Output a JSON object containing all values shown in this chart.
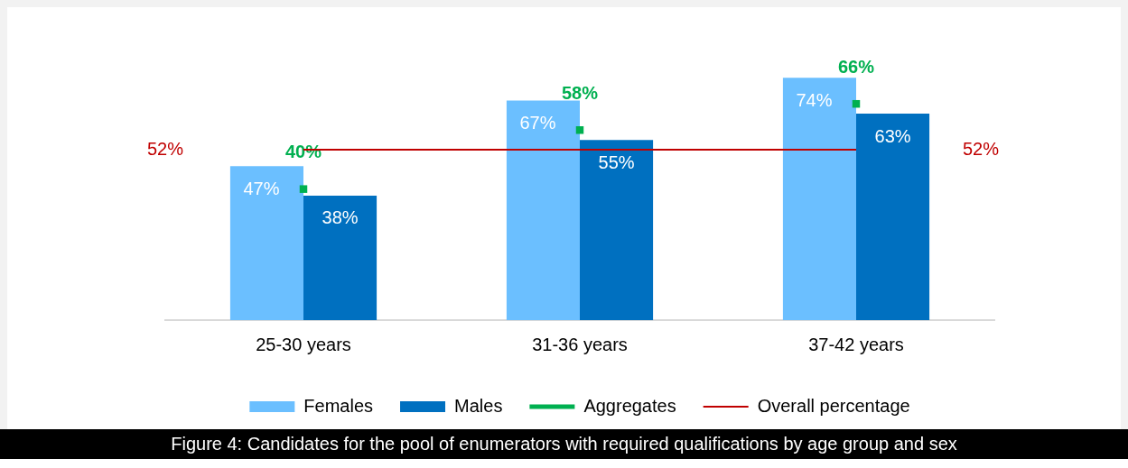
{
  "chart_data": {
    "type": "bar",
    "categories": [
      "25-30 years",
      "31-36 years",
      "37-42 years"
    ],
    "series": [
      {
        "name": "Females",
        "color": "#6bbfff",
        "values": [
          47,
          67,
          74
        ],
        "value_labels": [
          "47%",
          "67%",
          "74%"
        ]
      },
      {
        "name": "Males",
        "color": "#0070c0",
        "values": [
          38,
          55,
          63
        ],
        "value_labels": [
          "38%",
          "55%",
          "63%"
        ]
      },
      {
        "name": "Aggregates",
        "type": "scatter",
        "marker": "square",
        "color": "#00b050",
        "x": [
          "25-30 years",
          "31-36 years",
          "37-42 years"
        ],
        "values": [
          40,
          58,
          66
        ],
        "value_labels": [
          "40%",
          "58%",
          "66%"
        ]
      }
    ],
    "ref_lines": [
      {
        "axis": "y",
        "value": 52,
        "label": "Overall percentage",
        "color": "#c00000"
      }
    ],
    "annotations": [
      "52%",
      "52%",
      "Figure 4: Candidates for the pool of enumerators with required qualifications by age group and sex"
    ],
    "tick_labels": "x",
    "grid": false,
    "legend": "bottom"
  }
}
